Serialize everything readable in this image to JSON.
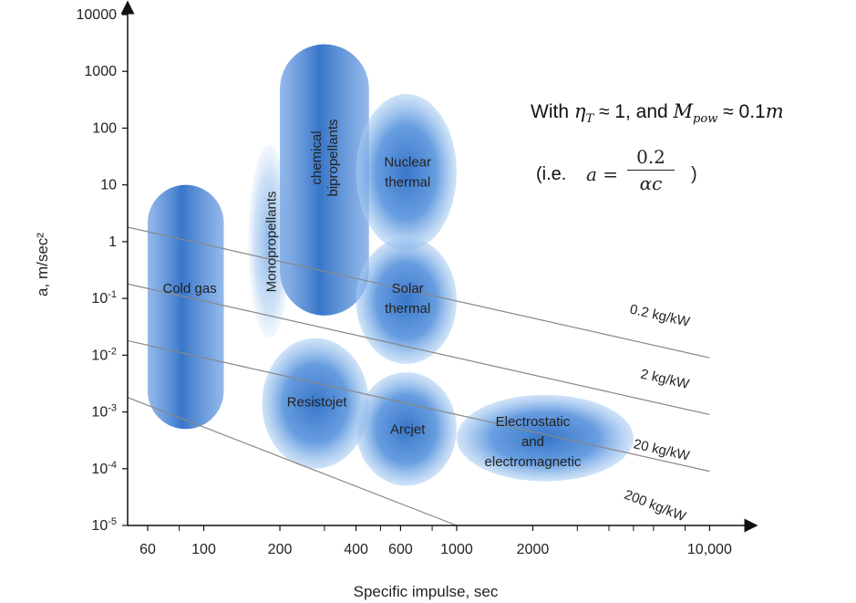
{
  "chart_data": {
    "type": "scatter",
    "xlabel": "Specific impulse, sec",
    "ylabel": "a, m/sec²",
    "x_scale": "log",
    "y_scale": "log",
    "xlim": [
      50,
      13000
    ],
    "ylim": [
      1e-05,
      10000
    ],
    "x_ticks": [
      {
        "value": 60,
        "label": "60"
      },
      {
        "value": 100,
        "label": "100"
      },
      {
        "value": 200,
        "label": "200"
      },
      {
        "value": 400,
        "label": "400"
      },
      {
        "value": 600,
        "label": "600"
      },
      {
        "value": 1000,
        "label": "1000"
      },
      {
        "value": 2000,
        "label": "2000"
      },
      {
        "value": 10000,
        "label": "10,000"
      }
    ],
    "x_minor_ticks": [
      80,
      300,
      500,
      800,
      3000,
      4000,
      5000,
      6000,
      8000
    ],
    "y_ticks": [
      {
        "value": 10000,
        "label": "10000"
      },
      {
        "value": 1000,
        "label": "1000"
      },
      {
        "value": 100,
        "label": "100"
      },
      {
        "value": 10,
        "label": "10"
      },
      {
        "value": 1,
        "label": "1"
      },
      {
        "value": 0.1,
        "label": "10",
        "sup": "-1"
      },
      {
        "value": 0.01,
        "label": "10",
        "sup": "-2"
      },
      {
        "value": 0.001,
        "label": "10",
        "sup": "-3"
      },
      {
        "value": 0.0001,
        "label": "10",
        "sup": "-4"
      },
      {
        "value": 1e-05,
        "label": "10",
        "sup": "-5"
      }
    ],
    "regions": [
      {
        "label": [
          "Cold gas"
        ],
        "isp_range": [
          60,
          120
        ],
        "accel_range": [
          0.0005,
          10
        ],
        "shape": "pill",
        "label_at": [
          88,
          0.15
        ]
      },
      {
        "label": [
          "Monopropellants"
        ],
        "isp_range": [
          150,
          220
        ],
        "accel_range": [
          0.02,
          50
        ],
        "shape": "ellipse",
        "faint": true,
        "label_vertical": true,
        "label_at": [
          185,
          1
        ]
      },
      {
        "label": [
          "chemical",
          "bipropellants"
        ],
        "isp_range": [
          200,
          450
        ],
        "accel_range": [
          0.05,
          3000
        ],
        "shape": "pill",
        "label_vertical": true,
        "label_at": [
          300,
          30
        ]
      },
      {
        "label": [
          "Nuclear",
          "thermal"
        ],
        "isp_range": [
          400,
          1000
        ],
        "accel_range": [
          0.7,
          400
        ],
        "shape": "ellipse",
        "label_at": [
          640,
          17
        ]
      },
      {
        "label": [
          "Solar",
          "thermal"
        ],
        "isp_range": [
          400,
          1000
        ],
        "accel_range": [
          0.007,
          1.2
        ],
        "shape": "ellipse",
        "label_at": [
          640,
          0.1
        ]
      },
      {
        "label": [
          "Resistojet"
        ],
        "isp_range": [
          170,
          450
        ],
        "accel_range": [
          0.0001,
          0.02
        ],
        "shape": "ellipse",
        "label_at": [
          280,
          0.0015
        ]
      },
      {
        "label": [
          "Arcjet"
        ],
        "isp_range": [
          400,
          1000
        ],
        "accel_range": [
          5e-05,
          0.005
        ],
        "shape": "ellipse",
        "label_at": [
          640,
          0.0005
        ]
      },
      {
        "label": [
          "Electrostatic",
          "and",
          "electromagnetic"
        ],
        "isp_range": [
          1000,
          5000
        ],
        "accel_range": [
          6e-05,
          0.002
        ],
        "shape": "ellipse",
        "label_at": [
          2000,
          0.0003
        ]
      }
    ],
    "lines": [
      {
        "name": "0.2 kg/kW",
        "points": [
          [
            50,
            1.8
          ],
          [
            10000,
            0.009
          ]
        ],
        "label_at": [
          6300,
          0.042
        ]
      },
      {
        "name": "2 kg/kW",
        "points": [
          [
            50,
            0.18
          ],
          [
            10000,
            0.0009
          ]
        ],
        "label_at": [
          6600,
          0.0032
        ]
      },
      {
        "name": "20 kg/kW",
        "points": [
          [
            50,
            0.018
          ],
          [
            10000,
            9e-05
          ]
        ],
        "label_at": [
          6400,
          0.00018
        ]
      },
      {
        "name": "200 kg/kW",
        "points": [
          [
            50,
            0.0018
          ],
          [
            1000,
            1e-05
          ]
        ],
        "label_at": [
          6000,
          1.9e-05
        ]
      }
    ]
  },
  "annotation": {
    "line1": {
      "prefix": "With ",
      "eta": "η",
      "eta_sub": "T",
      "approx1": " ≈ 1, and ",
      "m": "M",
      "m_sub": "pow",
      "approx2": " ≈ 0.1",
      "m2": "m"
    },
    "line2": {
      "prefix": "(i.e.",
      "lhs": "a =",
      "num": "0.2",
      "den": "αc",
      "suffix": ")"
    }
  },
  "colors": {
    "region_fill": "#4a8ad8",
    "region_core": "#2f70c8",
    "axis": "#111111",
    "line": "#888888"
  }
}
